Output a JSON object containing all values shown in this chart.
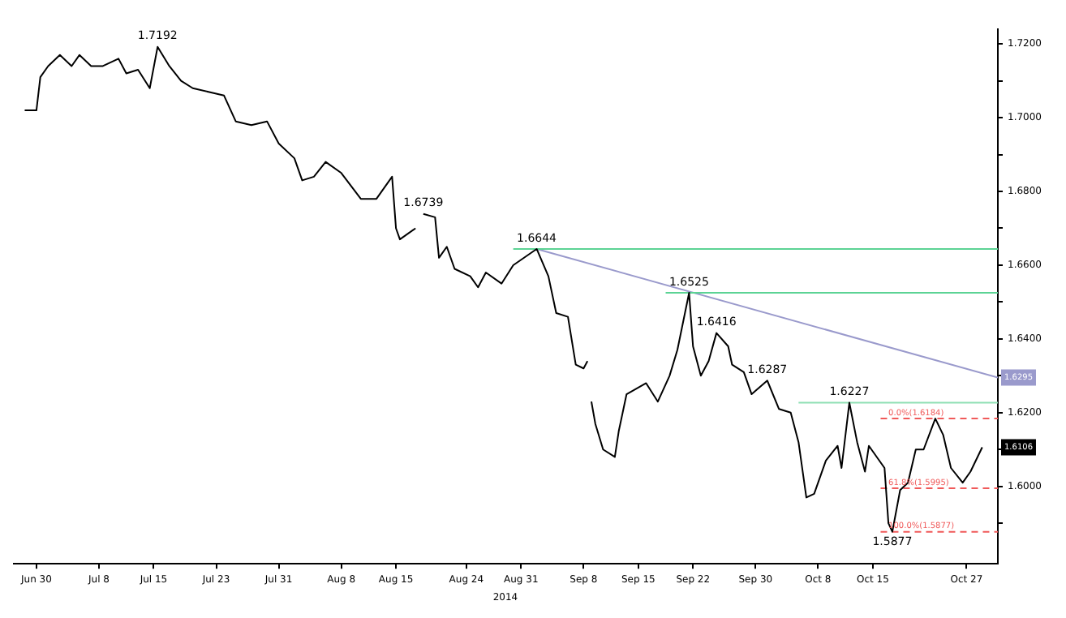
{
  "chart_data": {
    "type": "line",
    "xlabel": "2014",
    "xlim": [
      "2014-06-27",
      "2014-10-31"
    ],
    "xticks": [
      {
        "value": "2014-06-30",
        "label": "Jun 30"
      },
      {
        "value": "2014-07-08",
        "label": "Jul 8"
      },
      {
        "value": "2014-07-15",
        "label": "Jul 15"
      },
      {
        "value": "2014-07-23",
        "label": "Jul 23"
      },
      {
        "value": "2014-07-31",
        "label": "Jul 31"
      },
      {
        "value": "2014-08-08",
        "label": "Aug 8"
      },
      {
        "value": "2014-08-15",
        "label": "Aug 15"
      },
      {
        "value": "2014-08-24",
        "label": "Aug 24"
      },
      {
        "value": "2014-08-31",
        "label": "Aug 31"
      },
      {
        "value": "2014-09-08",
        "label": "Sep 8"
      },
      {
        "value": "2014-09-15",
        "label": "Sep 15"
      },
      {
        "value": "2014-09-22",
        "label": "Sep 22"
      },
      {
        "value": "2014-09-30",
        "label": "Sep 30"
      },
      {
        "value": "2014-10-08",
        "label": "Oct 8"
      },
      {
        "value": "2014-10-15",
        "label": "Oct 15"
      },
      {
        "value": "2014-10-27",
        "label": "Oct 27"
      }
    ],
    "ylim": [
      1.579,
      1.724
    ],
    "yticks": [
      {
        "value": 1.59,
        "label": null
      },
      {
        "value": 1.6,
        "label": "1.6000"
      },
      {
        "value": 1.61,
        "label": null
      },
      {
        "value": 1.62,
        "label": "1.6200"
      },
      {
        "value": 1.63,
        "label": null
      },
      {
        "value": 1.64,
        "label": "1.6400"
      },
      {
        "value": 1.65,
        "label": null
      },
      {
        "value": 1.66,
        "label": "1.6600"
      },
      {
        "value": 1.67,
        "label": null
      },
      {
        "value": 1.68,
        "label": "1.6800"
      },
      {
        "value": 1.69,
        "label": null
      },
      {
        "value": 1.7,
        "label": "1.7000"
      },
      {
        "value": 1.71,
        "label": null
      },
      {
        "value": 1.72,
        "label": "1.7200"
      }
    ],
    "series": [
      {
        "color": "#000000",
        "x": [
          "2014-06-28T12:00",
          "2014-06-30",
          "2014-06-30T12:00",
          "2014-07-01T12:00",
          "2014-07-03",
          "2014-07-04T12:00",
          "2014-07-05T12:00",
          "2014-07-07",
          "2014-07-08T12:00",
          "2014-07-10T12:00",
          "2014-07-11T12:00",
          "2014-07-13",
          "2014-07-14T12:00",
          "2014-07-15T12:00",
          "2014-07-17",
          "2014-07-18T12:00",
          "2014-07-20",
          "2014-07-22",
          "2014-07-24",
          "2014-07-25T12:00",
          "2014-07-27T12:00",
          "2014-07-29T12:00",
          "2014-07-31",
          "2014-08-02",
          "2014-08-03",
          "2014-08-04T12:00",
          "2014-08-06",
          "2014-08-08",
          "2014-08-10T12:00",
          "2014-08-12T12:00",
          "2014-08-14T12:00",
          "2014-08-15",
          "2014-08-15T12:00",
          "2014-08-17T12:00",
          "2014-08-18",
          "2014-08-18T12:00",
          "2014-08-20",
          "2014-08-20T12:00",
          "2014-08-21T12:00",
          "2014-08-22T12:00",
          "2014-08-24T12:00",
          "2014-08-25T12:00",
          "2014-08-26T12:00",
          "2014-08-28T12:00",
          "2014-08-30",
          "2014-09-02",
          "2014-09-03T12:00",
          "2014-09-04T12:00",
          "2014-09-06",
          "2014-09-07",
          "2014-09-08",
          "2014-09-08T12:00",
          "2014-09-08T18:00",
          "2014-09-09",
          "2014-09-09T12:00",
          "2014-09-10T12:00",
          "2014-09-12",
          "2014-09-12T12:00",
          "2014-09-13T12:00",
          "2014-09-16",
          "2014-09-17T12:00",
          "2014-09-19",
          "2014-09-20",
          "2014-09-21T12:00",
          "2014-09-22",
          "2014-09-23",
          "2014-09-24",
          "2014-09-25",
          "2014-09-26T12:00",
          "2014-09-27",
          "2014-09-28T12:00",
          "2014-09-29T12:00",
          "2014-10-01T12:00",
          "2014-10-03",
          "2014-10-04T12:00",
          "2014-10-05T12:00",
          "2014-10-06T12:00",
          "2014-10-07T12:00",
          "2014-10-09",
          "2014-10-10T12:00",
          "2014-10-11",
          "2014-10-12",
          "2014-10-13",
          "2014-10-14",
          "2014-10-14T12:00",
          "2014-10-16T12:00",
          "2014-10-17",
          "2014-10-17T12:00",
          "2014-10-18T12:00",
          "2014-10-19T12:00",
          "2014-10-20T12:00",
          "2014-10-21T12:00",
          "2014-10-23",
          "2014-10-24",
          "2014-10-25",
          "2014-10-26T12:00",
          "2014-10-27T12:00",
          "2014-10-29"
        ],
        "values": [
          1.702,
          1.702,
          1.711,
          1.714,
          1.717,
          1.714,
          1.717,
          1.714,
          1.714,
          1.716,
          1.712,
          1.713,
          1.708,
          1.7192,
          1.714,
          1.71,
          1.708,
          1.707,
          1.706,
          1.699,
          1.698,
          1.699,
          1.693,
          1.689,
          1.683,
          1.684,
          1.688,
          1.685,
          1.678,
          1.678,
          1.684,
          1.67,
          1.667,
          1.67,
          null,
          1.6739,
          1.673,
          1.662,
          1.665,
          1.659,
          1.657,
          1.654,
          1.658,
          1.655,
          1.66,
          1.6644,
          1.657,
          1.647,
          1.646,
          1.633,
          1.632,
          1.634,
          null,
          1.623,
          1.617,
          1.61,
          1.608,
          1.615,
          1.625,
          1.628,
          1.623,
          1.63,
          1.637,
          1.6525,
          1.638,
          1.63,
          1.634,
          1.6416,
          1.638,
          1.633,
          1.631,
          1.625,
          1.6287,
          1.621,
          1.62,
          1.612,
          1.597,
          1.598,
          1.607,
          1.611,
          1.605,
          1.6227,
          1.612,
          1.604,
          1.611,
          1.605,
          1.59,
          1.5877,
          1.599,
          1.601,
          1.61,
          1.61,
          1.6184,
          1.614,
          1.605,
          1.601,
          1.604,
          1.6106
        ]
      },
      {
        "type": "line",
        "color": "#5cd394",
        "x": [
          "2014-08-30",
          "2014-10-31"
        ],
        "values": [
          1.6644,
          1.6644
        ]
      },
      {
        "type": "line",
        "color": "#5cd394",
        "x": [
          "2014-09-18T12:00",
          "2014-10-31"
        ],
        "values": [
          1.6525,
          1.6525
        ]
      },
      {
        "type": "line",
        "color": "#8fe0b4",
        "x": [
          "2014-10-05T12:00",
          "2014-10-31"
        ],
        "values": [
          1.6227,
          1.6227
        ]
      },
      {
        "type": "line",
        "color": "#9a9acc",
        "x": [
          "2014-09-02",
          "2014-10-31"
        ],
        "values": [
          1.6644,
          1.6295
        ]
      },
      {
        "type": "line",
        "color": "#f05a5a",
        "line_style": "dashed",
        "x": [
          "2014-10-16",
          "2014-10-31"
        ],
        "values": [
          1.6184,
          1.6184
        ]
      },
      {
        "type": "line",
        "color": "#f05a5a",
        "line_style": "dashed",
        "x": [
          "2014-10-16",
          "2014-10-31"
        ],
        "values": [
          1.5995,
          1.5995
        ]
      },
      {
        "type": "line",
        "color": "#f05a5a",
        "line_style": "dashed",
        "x": [
          "2014-10-16",
          "2014-10-31"
        ],
        "values": [
          1.5877,
          1.5877
        ]
      }
    ],
    "annotations": [
      {
        "text": "1.7192",
        "x": "2014-07-15T12:00",
        "y": 1.7192
      },
      {
        "text": "1.6739",
        "x": "2014-08-18T12:00",
        "y": 1.6739
      },
      {
        "text": "1.6644",
        "x": "2014-09-02",
        "y": 1.6644
      },
      {
        "text": "1.6525",
        "x": "2014-09-21T12:00",
        "y": 1.6525
      },
      {
        "text": "1.6416",
        "x": "2014-09-25",
        "y": 1.6416
      },
      {
        "text": "1.6287",
        "x": "2014-10-01T12:00",
        "y": 1.6287
      },
      {
        "text": "1.6227",
        "x": "2014-10-12",
        "y": 1.6227
      },
      {
        "text": "1.5877",
        "x": "2014-10-17T12:00",
        "y": 1.5877
      },
      {
        "text": "0.0%(1.6184)",
        "x": "2014-10-17",
        "y": 1.6184
      },
      {
        "text": "61.8%(1.5995)",
        "x": "2014-10-17",
        "y": 1.5995
      },
      {
        "text": "100.0%(1.5877)",
        "x": "2014-10-17",
        "y": 1.5877
      },
      {
        "text": "1.6295",
        "y": 1.6295
      },
      {
        "text": "1.6106",
        "y": 1.6106
      }
    ]
  }
}
